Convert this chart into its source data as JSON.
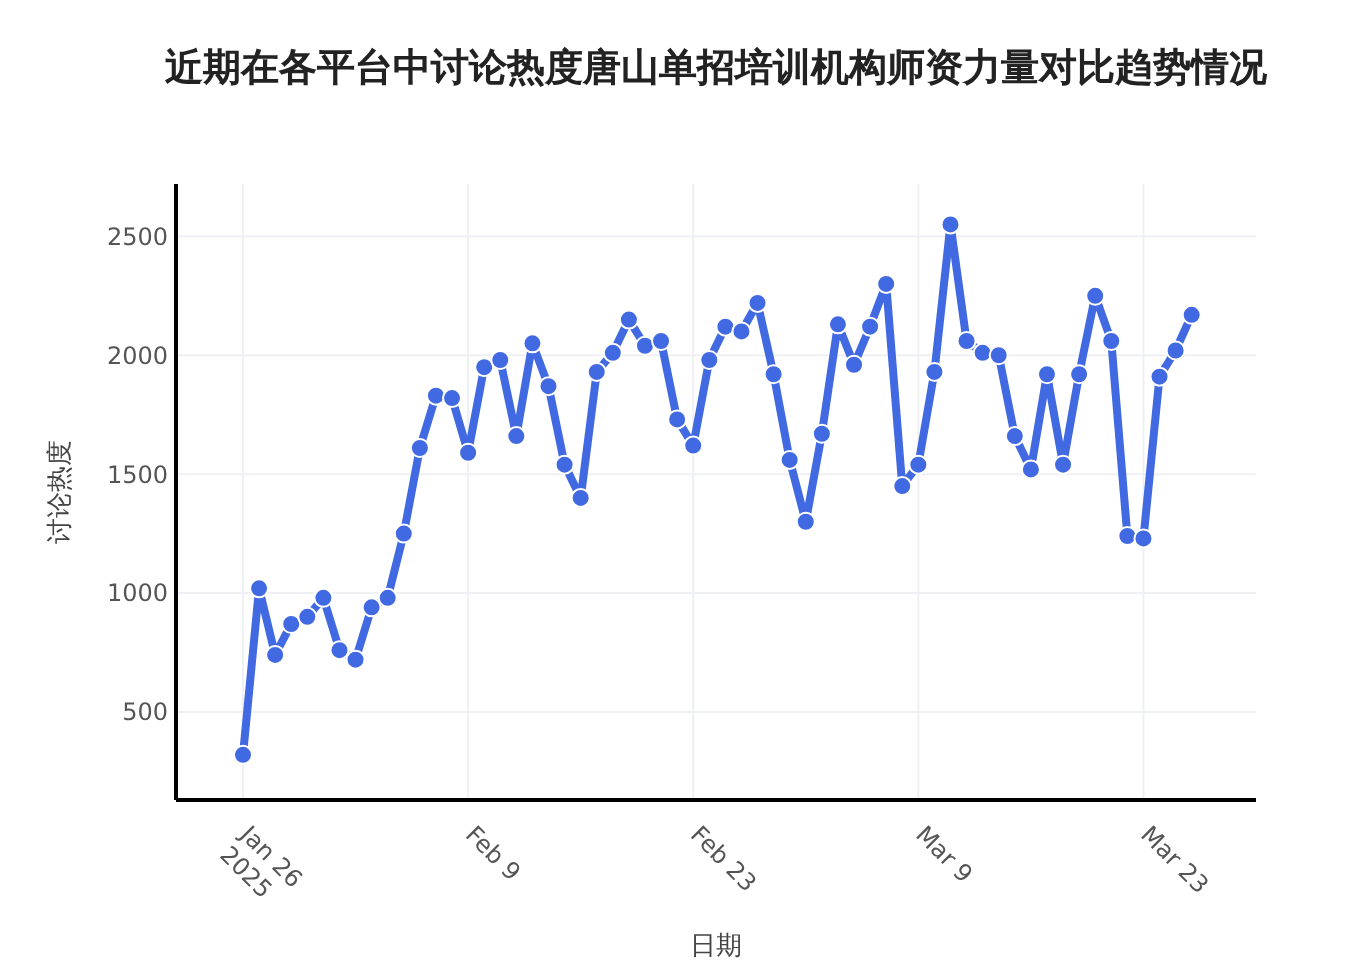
{
  "chart_data": {
    "type": "line",
    "title": "近期在各平台中讨论热度唐山单招培训机构师资力量对比趋势情况",
    "xlabel": "日期",
    "ylabel": "讨论热度",
    "x": [
      "2025-01-26",
      "2025-01-27",
      "2025-01-28",
      "2025-01-29",
      "2025-01-30",
      "2025-01-31",
      "2025-02-01",
      "2025-02-02",
      "2025-02-03",
      "2025-02-04",
      "2025-02-05",
      "2025-02-06",
      "2025-02-07",
      "2025-02-08",
      "2025-02-09",
      "2025-02-10",
      "2025-02-11",
      "2025-02-12",
      "2025-02-13",
      "2025-02-14",
      "2025-02-15",
      "2025-02-16",
      "2025-02-17",
      "2025-02-18",
      "2025-02-19",
      "2025-02-20",
      "2025-02-21",
      "2025-02-22",
      "2025-02-23",
      "2025-02-24",
      "2025-02-25",
      "2025-02-26",
      "2025-02-27",
      "2025-02-28",
      "2025-03-01",
      "2025-03-02",
      "2025-03-03",
      "2025-03-04",
      "2025-03-05",
      "2025-03-06",
      "2025-03-07",
      "2025-03-08",
      "2025-03-09",
      "2025-03-10",
      "2025-03-11",
      "2025-03-12",
      "2025-03-13",
      "2025-03-14",
      "2025-03-15",
      "2025-03-16",
      "2025-03-17",
      "2025-03-18",
      "2025-03-19",
      "2025-03-20",
      "2025-03-21",
      "2025-03-22",
      "2025-03-23",
      "2025-03-24",
      "2025-03-25",
      "2025-03-26"
    ],
    "series": [
      {
        "color": "#4169e1",
        "values": [
          320,
          1020,
          740,
          870,
          900,
          980,
          760,
          720,
          940,
          980,
          1250,
          1610,
          1830,
          1820,
          1590,
          1950,
          1980,
          1660,
          2050,
          1870,
          1540,
          1400,
          1930,
          2010,
          2150,
          2040,
          2060,
          1730,
          1620,
          1980,
          2120,
          2100,
          2220,
          1920,
          1560,
          1300,
          1670,
          2130,
          1960,
          2120,
          2300,
          1450,
          1540,
          1930,
          2550,
          2060,
          2010,
          2000,
          1660,
          1520,
          1920,
          1540,
          1920,
          2250,
          2060,
          1240,
          1230,
          1910,
          2020,
          2170
        ]
      }
    ],
    "xlim": [
      "2025-01-21T20:00",
      "2025-03-30"
    ],
    "ylim": [
      130,
      2720
    ],
    "xticks": [
      {
        "value": "2025-01-26",
        "label": "Jan 26\n2025"
      },
      {
        "value": "2025-02-09",
        "label": "Feb 9"
      },
      {
        "value": "2025-02-23",
        "label": "Feb 23"
      },
      {
        "value": "2025-03-09",
        "label": "Mar 9"
      },
      {
        "value": "2025-03-23",
        "label": "Mar 23"
      }
    ],
    "yticks": [
      500,
      1000,
      1500,
      2000,
      2500
    ],
    "grid": true,
    "marker": "circle",
    "line_style": "solid"
  }
}
